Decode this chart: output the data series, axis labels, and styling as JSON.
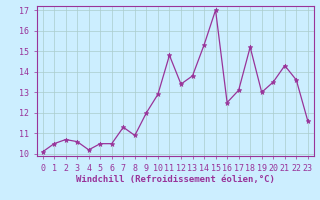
{
  "x": [
    0,
    1,
    2,
    3,
    4,
    5,
    6,
    7,
    8,
    9,
    10,
    11,
    12,
    13,
    14,
    15,
    16,
    17,
    18,
    19,
    20,
    21,
    22,
    23
  ],
  "y": [
    10.1,
    10.5,
    10.7,
    10.6,
    10.2,
    10.5,
    10.5,
    11.3,
    10.9,
    12.0,
    12.9,
    14.8,
    13.4,
    13.8,
    15.3,
    17.0,
    12.5,
    13.1,
    15.2,
    13.0,
    13.5,
    14.3,
    13.6,
    11.6
  ],
  "line_color": "#993399",
  "marker": "*",
  "marker_size": 3.5,
  "bg_color": "#cceeff",
  "grid_color": "#aacccc",
  "xlabel": "Windchill (Refroidissement éolien,°C)",
  "ylabel": "",
  "ylim": [
    10,
    17
  ],
  "xlim": [
    -0.5,
    23.5
  ],
  "xticks": [
    0,
    1,
    2,
    3,
    4,
    5,
    6,
    7,
    8,
    9,
    10,
    11,
    12,
    13,
    14,
    15,
    16,
    17,
    18,
    19,
    20,
    21,
    22,
    23
  ],
  "yticks": [
    10,
    11,
    12,
    13,
    14,
    15,
    16,
    17
  ],
  "xlabel_fontsize": 6.5,
  "tick_fontsize": 6,
  "label_color": "#993399",
  "tick_color": "#993399",
  "spine_color": "#993399"
}
